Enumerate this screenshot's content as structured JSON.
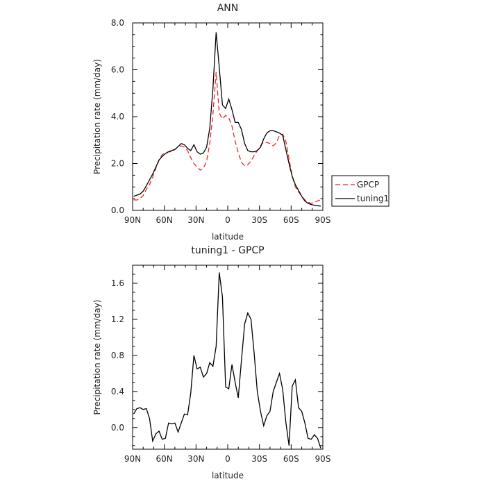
{
  "chart_data": [
    {
      "type": "line",
      "title": "ANN",
      "xlabel": "latitude",
      "ylabel": "Precipitation rate  (mm/day)",
      "xlim": [
        90,
        -90
      ],
      "ylim": [
        0,
        8
      ],
      "x_ticks": [
        90,
        60,
        30,
        0,
        -30,
        -60,
        -90
      ],
      "x_tick_labels": [
        "90N",
        "60N",
        "30N",
        "0",
        "30S",
        "60S",
        "90S"
      ],
      "y_ticks": [
        0,
        2,
        4,
        6,
        8
      ],
      "y_tick_labels": [
        "0.0",
        "2.0",
        "4.0",
        "6.0",
        "8.0"
      ],
      "legend_position": "right",
      "series": [
        {
          "name": "GPCP",
          "color": "#e8262a",
          "dash": "dashed",
          "x": [
            89,
            86,
            83,
            80,
            77,
            74,
            71,
            68,
            65,
            62,
            59,
            56,
            53,
            50,
            47,
            44,
            41,
            38,
            35,
            32,
            29,
            26,
            23,
            20,
            17,
            14,
            11,
            8,
            5,
            2,
            -1,
            -4,
            -7,
            -10,
            -13,
            -16,
            -19,
            -22,
            -25,
            -28,
            -31,
            -34,
            -37,
            -40,
            -43,
            -46,
            -49,
            -52,
            -55,
            -58,
            -61,
            -64,
            -67,
            -70,
            -73,
            -76,
            -79,
            -82,
            -85,
            -88
          ],
          "y": [
            0.45,
            0.44,
            0.5,
            0.63,
            0.9,
            1.1,
            1.42,
            1.8,
            2.15,
            2.38,
            2.45,
            2.5,
            2.5,
            2.6,
            2.72,
            2.75,
            2.7,
            2.55,
            2.25,
            2.0,
            1.85,
            1.72,
            1.8,
            2.1,
            2.85,
            4.1,
            5.9,
            4.15,
            3.9,
            4.05,
            3.95,
            3.6,
            2.95,
            2.45,
            2.05,
            1.9,
            1.95,
            2.1,
            2.35,
            2.55,
            2.75,
            2.92,
            2.9,
            2.85,
            2.75,
            2.88,
            3.2,
            3.25,
            2.95,
            2.2,
            1.45,
            1.0,
            0.8,
            0.6,
            0.45,
            0.35,
            0.3,
            0.35,
            0.4,
            0.45
          ]
        },
        {
          "name": "tuning1",
          "color": "#000000",
          "dash": "solid",
          "x": [
            89,
            86,
            83,
            80,
            77,
            74,
            71,
            68,
            65,
            62,
            59,
            56,
            53,
            50,
            47,
            44,
            41,
            38,
            35,
            32,
            29,
            26,
            23,
            20,
            17,
            14,
            11,
            8,
            5,
            2,
            -1,
            -4,
            -7,
            -10,
            -13,
            -16,
            -19,
            -22,
            -25,
            -28,
            -31,
            -34,
            -37,
            -40,
            -43,
            -46,
            -49,
            -52,
            -55,
            -58,
            -61,
            -64,
            -67,
            -70,
            -73,
            -76,
            -79,
            -82,
            -85,
            -88
          ],
          "y": [
            0.6,
            0.65,
            0.7,
            0.82,
            1.05,
            1.3,
            1.55,
            1.85,
            2.15,
            2.3,
            2.42,
            2.5,
            2.55,
            2.6,
            2.72,
            2.85,
            2.8,
            2.65,
            2.55,
            2.8,
            2.5,
            2.4,
            2.45,
            2.7,
            3.5,
            5.2,
            7.6,
            6.1,
            4.5,
            4.35,
            4.75,
            4.3,
            3.75,
            3.75,
            3.45,
            2.85,
            2.55,
            2.5,
            2.5,
            2.55,
            2.7,
            3.05,
            3.3,
            3.4,
            3.4,
            3.35,
            3.3,
            3.2,
            2.6,
            2.0,
            1.45,
            1.1,
            0.85,
            0.6,
            0.4,
            0.3,
            0.25,
            0.22,
            0.2,
            0.18
          ]
        }
      ]
    },
    {
      "type": "line",
      "title": "tuning1 - GPCP",
      "xlabel": "latitude",
      "ylabel": "Precipitation rate  (mm/day)",
      "xlim": [
        90,
        -90
      ],
      "ylim": [
        -0.24,
        1.8
      ],
      "x_ticks": [
        90,
        60,
        30,
        0,
        -30,
        -60,
        -90
      ],
      "x_tick_labels": [
        "90N",
        "60N",
        "30N",
        "0",
        "30S",
        "60S",
        "90S"
      ],
      "y_ticks": [
        0,
        0.4,
        0.8,
        1.2,
        1.6
      ],
      "y_tick_labels": [
        "0.0",
        "0.4",
        "0.8",
        "1.2",
        "1.6"
      ],
      "series": [
        {
          "color": "#000000",
          "dash": "solid",
          "x": [
            89,
            86,
            83,
            80,
            77,
            74,
            71,
            68,
            65,
            62,
            59,
            56,
            53,
            50,
            47,
            44,
            41,
            38,
            35,
            32,
            29,
            26,
            23,
            20,
            17,
            14,
            11,
            8,
            5,
            2,
            -1,
            -4,
            -7,
            -10,
            -13,
            -16,
            -19,
            -22,
            -25,
            -28,
            -31,
            -34,
            -37,
            -40,
            -43,
            -46,
            -49,
            -52,
            -55,
            -58,
            -61,
            -64,
            -67,
            -70,
            -73,
            -76,
            -79,
            -82,
            -85,
            -88
          ],
          "y": [
            0.15,
            0.21,
            0.22,
            0.2,
            0.21,
            0.1,
            -0.15,
            -0.07,
            -0.04,
            -0.13,
            -0.12,
            0.05,
            0.04,
            0.05,
            -0.05,
            0.05,
            0.15,
            0.14,
            0.38,
            0.8,
            0.65,
            0.67,
            0.56,
            0.6,
            0.72,
            0.68,
            0.9,
            1.72,
            1.45,
            0.45,
            0.43,
            0.7,
            0.5,
            0.33,
            0.75,
            1.15,
            1.27,
            1.2,
            0.82,
            0.4,
            0.18,
            0.02,
            0.13,
            0.18,
            0.4,
            0.5,
            0.6,
            0.42,
            0.06,
            -0.2,
            0.46,
            0.53,
            0.22,
            0.18,
            0.05,
            -0.12,
            -0.13,
            -0.08,
            -0.12,
            -0.23
          ]
        }
      ]
    }
  ]
}
